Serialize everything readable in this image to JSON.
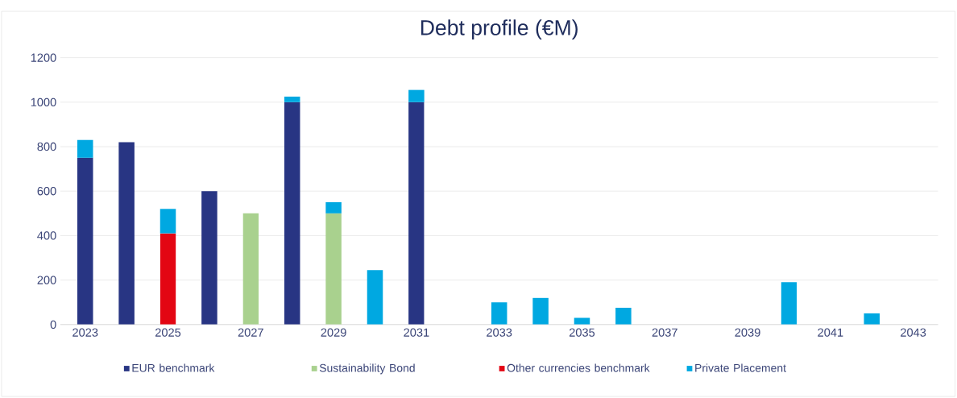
{
  "chart_data": {
    "type": "bar",
    "title": "Debt profile (€M)",
    "stacked": true,
    "categories": [
      "2023",
      null,
      "2025",
      null,
      "2027",
      null,
      "2029",
      null,
      "2031",
      null,
      "2033",
      null,
      "2035",
      null,
      "2037",
      null,
      "2039",
      null,
      "2041",
      null,
      "2043"
    ],
    "series": [
      {
        "name": "EUR benchmark",
        "color": "#283583",
        "values": [
          750,
          820,
          null,
          600,
          null,
          1000,
          null,
          null,
          1000,
          null,
          null,
          null,
          null,
          null,
          null,
          null,
          null,
          null,
          null,
          null,
          null
        ]
      },
      {
        "name": "Sustainability Bond",
        "color": "#a9d18e",
        "values": [
          null,
          null,
          null,
          null,
          500,
          null,
          500,
          null,
          null,
          null,
          null,
          null,
          null,
          null,
          null,
          null,
          null,
          null,
          null,
          null,
          null
        ]
      },
      {
        "name": "Other currencies benchmark",
        "color": "#e30613",
        "values": [
          null,
          null,
          410,
          null,
          null,
          null,
          null,
          null,
          null,
          null,
          null,
          null,
          null,
          null,
          null,
          null,
          null,
          null,
          null,
          null,
          null
        ]
      },
      {
        "name": "Private Placement",
        "color": "#00a8e1",
        "values": [
          80,
          null,
          110,
          null,
          null,
          25,
          50,
          245,
          55,
          null,
          100,
          120,
          30,
          75,
          null,
          null,
          null,
          190,
          null,
          50,
          null
        ]
      }
    ],
    "ylim": [
      0,
      1200
    ],
    "yticks": [
      0,
      200,
      400,
      600,
      800,
      1000,
      1200
    ],
    "grid": "y",
    "legend": "bottom"
  }
}
